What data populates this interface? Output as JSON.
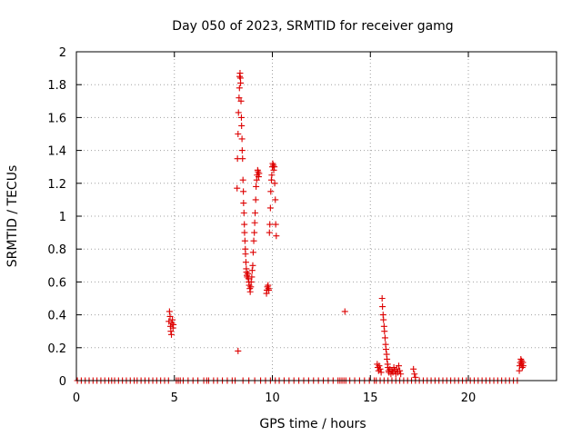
{
  "chart_data": {
    "type": "scatter",
    "title": "Day 050 of 2023, SRMTID for receiver gamg",
    "xlabel": "GPS time / hours",
    "ylabel": "SRMTID / TECUs",
    "xlim": [
      0,
      24.5
    ],
    "ylim": [
      0,
      2
    ],
    "xticks": [
      0,
      5,
      10,
      15,
      20
    ],
    "yticks": [
      0,
      0.2,
      0.4,
      0.6,
      0.8,
      1,
      1.2,
      1.4,
      1.6,
      1.8,
      2
    ],
    "ytick_labels": [
      "0",
      "0.2",
      "0.4",
      "0.6",
      "0.8",
      "1",
      "1.2",
      "1.4",
      "1.6",
      "1.8",
      "2"
    ],
    "grid": true,
    "marker": "+",
    "marker_color": "#dd0000",
    "series": [
      {
        "name": "SRMTID",
        "points": [
          [
            0.05,
            0
          ],
          [
            0.25,
            0
          ],
          [
            0.45,
            0
          ],
          [
            0.65,
            0
          ],
          [
            0.85,
            0
          ],
          [
            1.05,
            0
          ],
          [
            1.25,
            0
          ],
          [
            1.45,
            0
          ],
          [
            1.65,
            0
          ],
          [
            1.8,
            0
          ],
          [
            1.95,
            0
          ],
          [
            2.15,
            0
          ],
          [
            2.35,
            0
          ],
          [
            2.55,
            0
          ],
          [
            2.75,
            0
          ],
          [
            2.95,
            0
          ],
          [
            3.1,
            0
          ],
          [
            3.3,
            0
          ],
          [
            3.5,
            0
          ],
          [
            3.7,
            0
          ],
          [
            3.9,
            0
          ],
          [
            4.1,
            0
          ],
          [
            4.3,
            0
          ],
          [
            4.5,
            0
          ],
          [
            4.7,
            0
          ],
          [
            4.72,
            0.36
          ],
          [
            4.75,
            0.42
          ],
          [
            4.78,
            0.39
          ],
          [
            4.8,
            0.33
          ],
          [
            4.82,
            0.3
          ],
          [
            4.85,
            0.28
          ],
          [
            4.87,
            0.35
          ],
          [
            4.9,
            0.37
          ],
          [
            4.93,
            0.32
          ],
          [
            4.95,
            0.34
          ],
          [
            5.1,
            0
          ],
          [
            5.2,
            0
          ],
          [
            5.3,
            0
          ],
          [
            5.45,
            0
          ],
          [
            5.7,
            0
          ],
          [
            5.95,
            0
          ],
          [
            6.2,
            0
          ],
          [
            6.5,
            0
          ],
          [
            6.65,
            0
          ],
          [
            6.75,
            0
          ],
          [
            7.0,
            0
          ],
          [
            7.2,
            0
          ],
          [
            7.45,
            0
          ],
          [
            7.7,
            0
          ],
          [
            7.95,
            0
          ],
          [
            8.1,
            0
          ],
          [
            8.2,
            1.17
          ],
          [
            8.22,
            1.35
          ],
          [
            8.25,
            1.5
          ],
          [
            8.27,
            1.63
          ],
          [
            8.3,
            1.72
          ],
          [
            8.32,
            1.78
          ],
          [
            8.33,
            1.85
          ],
          [
            8.35,
            1.87
          ],
          [
            8.37,
            1.84
          ],
          [
            8.38,
            1.81
          ],
          [
            8.4,
            1.7
          ],
          [
            8.42,
            1.6
          ],
          [
            8.43,
            1.55
          ],
          [
            8.45,
            1.47
          ],
          [
            8.46,
            1.4
          ],
          [
            8.48,
            1.35
          ],
          [
            8.5,
            1.22
          ],
          [
            8.52,
            1.15
          ],
          [
            8.53,
            1.08
          ],
          [
            8.55,
            1.02
          ],
          [
            8.57,
            0.95
          ],
          [
            8.58,
            0.9
          ],
          [
            8.6,
            0.85
          ],
          [
            8.62,
            0.8
          ],
          [
            8.63,
            0.77
          ],
          [
            8.65,
            0.72
          ],
          [
            8.67,
            0.68
          ],
          [
            8.68,
            0.66
          ],
          [
            8.7,
            0.64
          ],
          [
            8.72,
            0.63
          ],
          [
            8.75,
            0.65
          ],
          [
            8.78,
            0.62
          ],
          [
            8.8,
            0.6
          ],
          [
            8.82,
            0.58
          ],
          [
            8.85,
            0.56
          ],
          [
            8.87,
            0.54
          ],
          [
            8.9,
            0.57
          ],
          [
            8.92,
            0.6
          ],
          [
            8.95,
            0.63
          ],
          [
            8.97,
            0.67
          ],
          [
            9.0,
            0.7
          ],
          [
            9.02,
            0.78
          ],
          [
            9.05,
            0.85
          ],
          [
            9.08,
            0.9
          ],
          [
            9.1,
            0.96
          ],
          [
            9.12,
            1.02
          ],
          [
            9.15,
            1.1
          ],
          [
            9.17,
            1.18
          ],
          [
            9.2,
            1.22
          ],
          [
            9.22,
            1.25
          ],
          [
            9.25,
            1.28
          ],
          [
            9.27,
            1.27
          ],
          [
            9.3,
            1.24
          ],
          [
            9.32,
            1.26
          ],
          [
            8.25,
            0.18
          ],
          [
            9.7,
            0.53
          ],
          [
            9.72,
            0.55
          ],
          [
            9.75,
            0.57
          ],
          [
            9.78,
            0.58
          ],
          [
            9.8,
            0.56
          ],
          [
            9.82,
            0.55
          ],
          [
            9.85,
            0.9
          ],
          [
            9.87,
            0.95
          ],
          [
            9.9,
            1.05
          ],
          [
            9.92,
            1.15
          ],
          [
            9.95,
            1.22
          ],
          [
            9.97,
            1.25
          ],
          [
            10.0,
            1.3
          ],
          [
            10.02,
            1.32
          ],
          [
            10.05,
            1.31
          ],
          [
            10.07,
            1.28
          ],
          [
            10.1,
            1.3
          ],
          [
            10.12,
            1.2
          ],
          [
            10.15,
            1.1
          ],
          [
            10.17,
            0.95
          ],
          [
            10.2,
            0.88
          ],
          [
            8.5,
            0
          ],
          [
            8.8,
            0
          ],
          [
            9.1,
            0
          ],
          [
            9.4,
            0
          ],
          [
            9.65,
            0
          ],
          [
            9.9,
            0
          ],
          [
            10.15,
            0
          ],
          [
            10.35,
            0
          ],
          [
            10.6,
            0
          ],
          [
            10.85,
            0
          ],
          [
            11.1,
            0
          ],
          [
            11.35,
            0
          ],
          [
            11.6,
            0
          ],
          [
            11.85,
            0
          ],
          [
            12.1,
            0
          ],
          [
            12.35,
            0
          ],
          [
            12.6,
            0
          ],
          [
            12.85,
            0
          ],
          [
            13.1,
            0
          ],
          [
            13.35,
            0
          ],
          [
            13.45,
            0
          ],
          [
            13.55,
            0
          ],
          [
            13.65,
            0
          ],
          [
            13.75,
            0
          ],
          [
            13.95,
            0
          ],
          [
            14.2,
            0
          ],
          [
            14.45,
            0
          ],
          [
            14.7,
            0
          ],
          [
            14.95,
            0
          ],
          [
            15.2,
            0
          ],
          [
            13.7,
            0.42
          ],
          [
            15.35,
            0.1
          ],
          [
            15.38,
            0.08
          ],
          [
            15.42,
            0.06
          ],
          [
            15.45,
            0.09
          ],
          [
            15.5,
            0.07
          ],
          [
            15.55,
            0.05
          ],
          [
            15.6,
            0.5
          ],
          [
            15.62,
            0.45
          ],
          [
            15.65,
            0.4
          ],
          [
            15.67,
            0.37
          ],
          [
            15.7,
            0.33
          ],
          [
            15.72,
            0.3
          ],
          [
            15.75,
            0.26
          ],
          [
            15.78,
            0.22
          ],
          [
            15.8,
            0.19
          ],
          [
            15.83,
            0.16
          ],
          [
            15.85,
            0.13
          ],
          [
            15.88,
            0.1
          ],
          [
            15.9,
            0.08
          ],
          [
            15.93,
            0.06
          ],
          [
            15.95,
            0.05
          ],
          [
            16.0,
            0.07
          ],
          [
            16.05,
            0.04
          ],
          [
            16.1,
            0.06
          ],
          [
            16.15,
            0.05
          ],
          [
            16.2,
            0.08
          ],
          [
            16.25,
            0.06
          ],
          [
            16.3,
            0.04
          ],
          [
            16.35,
            0.07
          ],
          [
            16.4,
            0.05
          ],
          [
            16.45,
            0.09
          ],
          [
            16.5,
            0.06
          ],
          [
            16.55,
            0.04
          ],
          [
            17.2,
            0.07
          ],
          [
            17.25,
            0.04
          ],
          [
            17.3,
            0.02
          ],
          [
            15.3,
            0
          ],
          [
            15.5,
            0
          ],
          [
            15.7,
            0
          ],
          [
            15.9,
            0
          ],
          [
            16.1,
            0
          ],
          [
            16.3,
            0
          ],
          [
            16.5,
            0
          ],
          [
            16.7,
            0
          ],
          [
            16.9,
            0
          ],
          [
            17.1,
            0
          ],
          [
            17.3,
            0
          ],
          [
            17.5,
            0
          ],
          [
            17.7,
            0
          ],
          [
            17.9,
            0
          ],
          [
            18.1,
            0
          ],
          [
            18.3,
            0
          ],
          [
            18.5,
            0
          ],
          [
            18.7,
            0
          ],
          [
            18.9,
            0
          ],
          [
            19.1,
            0
          ],
          [
            19.3,
            0
          ],
          [
            19.5,
            0
          ],
          [
            19.7,
            0
          ],
          [
            19.9,
            0
          ],
          [
            20.1,
            0
          ],
          [
            20.3,
            0
          ],
          [
            20.5,
            0
          ],
          [
            20.7,
            0
          ],
          [
            20.9,
            0
          ],
          [
            21.1,
            0
          ],
          [
            21.3,
            0
          ],
          [
            21.5,
            0
          ],
          [
            21.7,
            0
          ],
          [
            21.9,
            0
          ],
          [
            22.1,
            0
          ],
          [
            22.3,
            0
          ],
          [
            22.5,
            0
          ],
          [
            22.6,
            0.06
          ],
          [
            22.62,
            0.09
          ],
          [
            22.65,
            0.11
          ],
          [
            22.68,
            0.13
          ],
          [
            22.7,
            0.1
          ],
          [
            22.72,
            0.12
          ],
          [
            22.75,
            0.08
          ],
          [
            22.78,
            0.11
          ],
          [
            22.8,
            0.09
          ]
        ]
      }
    ]
  }
}
